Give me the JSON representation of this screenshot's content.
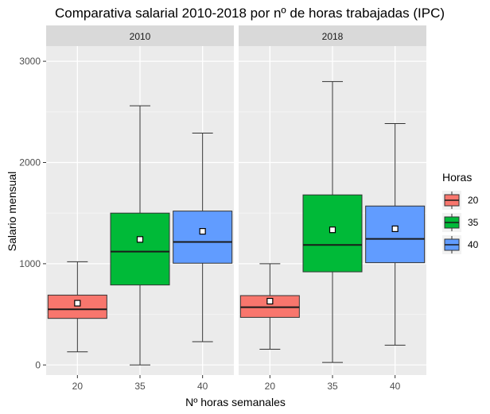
{
  "chart_data": {
    "type": "boxplot",
    "title": "Comparativa salarial 2010-2018 por nº de horas trabajadas (IPC)",
    "xlabel": "Nº horas semanales",
    "ylabel": "Salario mensual",
    "ylim": [
      -100,
      3150
    ],
    "yticks": [
      0,
      1000,
      2000,
      3000
    ],
    "categories": [
      "20",
      "35",
      "40"
    ],
    "grid": true,
    "legend": {
      "title": "Horas",
      "position": "right",
      "entries": [
        {
          "label": "20",
          "color": "#F8766D"
        },
        {
          "label": "35",
          "color": "#00BA38"
        },
        {
          "label": "40",
          "color": "#619CFF"
        }
      ]
    },
    "panels": [
      {
        "label": "2010",
        "boxes": [
          {
            "category": "20",
            "whisker_low": 130,
            "q1": 460,
            "median": 550,
            "q3": 690,
            "whisker_high": 1020,
            "mean": 610
          },
          {
            "category": "35",
            "whisker_low": 0,
            "q1": 790,
            "median": 1120,
            "q3": 1500,
            "whisker_high": 2560,
            "mean": 1240
          },
          {
            "category": "40",
            "whisker_low": 230,
            "q1": 1005,
            "median": 1215,
            "q3": 1520,
            "whisker_high": 2290,
            "mean": 1320
          }
        ]
      },
      {
        "label": "2018",
        "boxes": [
          {
            "category": "20",
            "whisker_low": 155,
            "q1": 470,
            "median": 570,
            "q3": 685,
            "whisker_high": 1000,
            "mean": 630
          },
          {
            "category": "35",
            "whisker_low": 25,
            "q1": 920,
            "median": 1185,
            "q3": 1680,
            "whisker_high": 2800,
            "mean": 1335
          },
          {
            "category": "40",
            "whisker_low": 195,
            "q1": 1010,
            "median": 1245,
            "q3": 1570,
            "whisker_high": 2385,
            "mean": 1345
          }
        ]
      }
    ]
  }
}
